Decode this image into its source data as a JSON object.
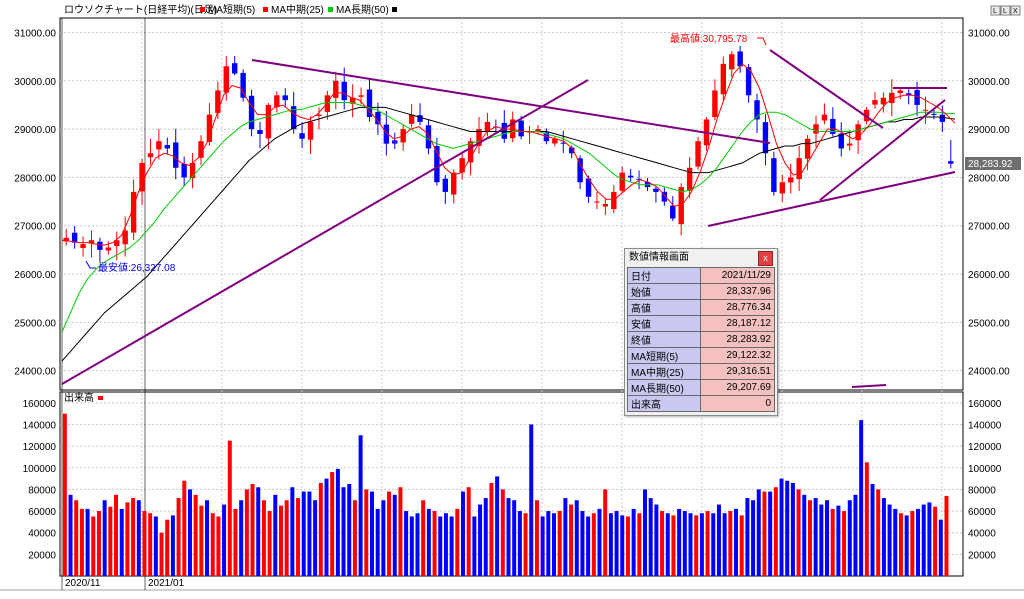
{
  "header": {
    "title": "ロウソクチャート(日経平均)(日足)",
    "ma_short_label": "MA短期(5)",
    "ma_mid_label": "MA中期(25)",
    "ma_long_label": "MA長期(50)",
    "volume_label": "出来高",
    "corner_buttons": [
      "L",
      "L",
      "X"
    ]
  },
  "colors": {
    "up": "#ff0000",
    "down": "#0000ff",
    "ma_short": "#ff0000",
    "ma_mid": "#00cc00",
    "ma_long": "#000000",
    "trendline": "#800080",
    "grid": "#c8c8c8",
    "last_price_box": "#6e6e6e"
  },
  "chart_data": [
    {
      "type": "candlestick",
      "ylim": [
        23600,
        31300
      ],
      "yticks": [
        "31000.00",
        "30000.00",
        "29000.00",
        "28000.00",
        "27000.00",
        "26000.00",
        "25000.00",
        "24000.00"
      ],
      "ytick_values": [
        31000,
        30000,
        29000,
        28000,
        27000,
        26000,
        25000,
        24000
      ],
      "date_labels": [
        "2020/11",
        "2021/01"
      ],
      "annotations": {
        "high_label": "最高値:30,795.78",
        "high_value": 30795.78,
        "low_label": "最安値:26,327.08",
        "low_value": 26327.08
      },
      "last_price_label": "28,283.92",
      "last_price": 28283.92,
      "key_closes": [
        26750,
        26650,
        26620,
        26700,
        26500,
        26550,
        26700,
        26900,
        27700,
        28300,
        28500,
        28750,
        28600,
        28200,
        28000,
        28300,
        28750,
        29300,
        29800,
        30300,
        30150,
        29650,
        29000,
        28900,
        29500,
        29700,
        29600,
        29000,
        28800,
        29150,
        29300,
        29700,
        30000,
        29600,
        29650,
        29700,
        29250,
        29100,
        28700,
        28700,
        29000,
        29300,
        29150,
        28600,
        27900,
        27700,
        28100,
        28400,
        28750,
        29000,
        29150,
        29050,
        28800,
        29200,
        28850,
        28950,
        29000,
        28750,
        28800,
        28700,
        28500,
        27900,
        27600,
        27500,
        27450,
        27700,
        28100,
        28000,
        27950,
        27800,
        27700,
        27500,
        27150,
        27800,
        28200,
        28750,
        29200,
        29800,
        30350,
        30550,
        30300,
        29700,
        29200,
        28500,
        27700,
        27900,
        28000,
        28400,
        28800,
        29100,
        29300,
        28900,
        28600,
        28700,
        29100,
        29400,
        29600,
        29650,
        29750,
        29800,
        29700,
        29500,
        29400,
        29300,
        29150,
        28280
      ],
      "ma_short_values": [
        26700,
        26680,
        26650,
        26650,
        26620,
        26600,
        26650,
        26800,
        27200,
        27700,
        28100,
        28400,
        28500,
        28450,
        28300,
        28250,
        28400,
        28700,
        29200,
        29700,
        29900,
        29850,
        29550,
        29300,
        29300,
        29450,
        29500,
        29350,
        29250,
        29200,
        29300,
        29500,
        29750,
        29750,
        29650,
        29600,
        29400,
        29200,
        28950,
        28800,
        28850,
        29000,
        29050,
        28900,
        28550,
        28200,
        28050,
        28100,
        28400,
        28700,
        28950,
        29050,
        29000,
        29000,
        28950,
        28950,
        28900,
        28850,
        28800,
        28750,
        28600,
        28250,
        27950,
        27700,
        27550,
        27550,
        27700,
        27850,
        27950,
        27900,
        27800,
        27600,
        27400,
        27450,
        27700,
        28100,
        28600,
        29200,
        29700,
        30150,
        30350,
        30200,
        29850,
        29300,
        28700,
        28300,
        28050,
        28100,
        28400,
        28700,
        29000,
        29000,
        28900,
        28800,
        28900,
        29100,
        29350,
        29550,
        29650,
        29700,
        29700,
        29650,
        29550,
        29450,
        29300,
        29120
      ],
      "ma_mid_values": [
        24800,
        25200,
        25600,
        25900,
        26100,
        26250,
        26350,
        26450,
        26550,
        26700,
        26900,
        27100,
        27350,
        27550,
        27750,
        27950,
        28150,
        28350,
        28550,
        28750,
        28900,
        29050,
        29150,
        29200,
        29250,
        29300,
        29350,
        29400,
        29400,
        29450,
        29500,
        29550,
        29550,
        29550,
        29550,
        29500,
        29450,
        29400,
        29300,
        29200,
        29100,
        29000,
        28900,
        28800,
        28700,
        28650,
        28600,
        28650,
        28700,
        28750,
        28800,
        28850,
        28900,
        28950,
        28950,
        28950,
        28950,
        28900,
        28850,
        28800,
        28700,
        28600,
        28500,
        28350,
        28200,
        28050,
        27950,
        27900,
        27850,
        27850,
        27850,
        27800,
        27750,
        27700,
        27750,
        27850,
        28000,
        28200,
        28450,
        28700,
        28950,
        29150,
        29300,
        29350,
        29350,
        29300,
        29200,
        29100,
        29000,
        28950,
        28950,
        28950,
        28950,
        28950,
        29000,
        29050,
        29100,
        29150,
        29200,
        29250,
        29300,
        29350,
        29350,
        29350,
        29330,
        29317
      ],
      "ma_long_values": [
        24200,
        24400,
        24600,
        24800,
        25000,
        25200,
        25350,
        25500,
        25650,
        25800,
        25950,
        26150,
        26350,
        26550,
        26750,
        26950,
        27150,
        27350,
        27550,
        27750,
        27950,
        28150,
        28350,
        28500,
        28650,
        28800,
        28900,
        29000,
        29100,
        29150,
        29200,
        29250,
        29300,
        29350,
        29400,
        29450,
        29450,
        29450,
        29450,
        29400,
        29350,
        29300,
        29250,
        29200,
        29150,
        29100,
        29050,
        29000,
        28950,
        28950,
        28950,
        28950,
        28950,
        28950,
        28950,
        28950,
        28950,
        28950,
        28900,
        28850,
        28800,
        28750,
        28700,
        28650,
        28600,
        28550,
        28500,
        28450,
        28400,
        28350,
        28300,
        28250,
        28200,
        28150,
        28100,
        28100,
        28100,
        28150,
        28200,
        28250,
        28300,
        28400,
        28500,
        28550,
        28600,
        28650,
        28650,
        28700,
        28700,
        28750,
        28800,
        28850,
        28900,
        28950,
        29000,
        29050,
        29100,
        29150,
        29150,
        29200,
        29200,
        29250,
        29250,
        29250,
        29230,
        29208
      ]
    },
    {
      "type": "bar",
      "ylim": [
        0,
        170000
      ],
      "yticks": [
        "160000",
        "140000",
        "120000",
        "100000",
        "80000",
        "60000",
        "40000",
        "20000"
      ],
      "ytick_values": [
        160000,
        140000,
        120000,
        100000,
        80000,
        60000,
        40000,
        20000
      ],
      "values": [
        150000,
        75000,
        70000,
        62000,
        62000,
        55000,
        60000,
        70000,
        64000,
        75000,
        62000,
        68000,
        72000,
        70000,
        60000,
        58000,
        55000,
        40000,
        52000,
        56000,
        72000,
        88000,
        80000,
        75000,
        65000,
        70000,
        58000,
        55000,
        66000,
        125000,
        62000,
        70000,
        80000,
        85000,
        82000,
        70000,
        60000,
        75000,
        65000,
        70000,
        82000,
        72000,
        78000,
        78000,
        70000,
        86000,
        90000,
        96000,
        99000,
        82000,
        85000,
        70000,
        130000,
        80000,
        78000,
        62000,
        70000,
        78000,
        75000,
        82000,
        60000,
        55000,
        58000,
        70000,
        62000,
        60000,
        55000,
        58000,
        55000,
        62000,
        78000,
        82000,
        55000,
        66000,
        72000,
        86000,
        92000,
        80000,
        72000,
        70000,
        60000,
        58000,
        140000,
        70000,
        55000,
        60000,
        58000,
        60000,
        72000,
        66000,
        70000,
        60000,
        55000,
        58000,
        62000,
        80000,
        58000,
        60000,
        56000,
        55000,
        62000,
        58000,
        80000,
        72000,
        66000,
        60000,
        58000,
        56000,
        62000,
        60000,
        58000,
        56000,
        58000,
        60000,
        58000,
        66000,
        58000,
        60000,
        62000,
        56000,
        72000,
        70000,
        80000,
        78000,
        78000,
        82000,
        90000,
        88000,
        86000,
        80000,
        75000,
        70000,
        72000,
        66000,
        70000,
        62000,
        65000,
        60000,
        70000,
        75000,
        144000,
        105000,
        85000,
        80000,
        72000,
        66000,
        62000,
        58000,
        56000,
        60000,
        62000,
        66000,
        68000,
        64000,
        52000,
        74000,
        0
      ]
    }
  ],
  "info_panel": {
    "title": "数値情報画面",
    "close_label": "x",
    "rows": [
      {
        "label": "日付",
        "value": "2021/11/29"
      },
      {
        "label": "始値",
        "value": "28,337.96"
      },
      {
        "label": "高値",
        "value": "28,776.34"
      },
      {
        "label": "安値",
        "value": "28,187.12"
      },
      {
        "label": "終値",
        "value": "28,283.92"
      },
      {
        "label": "MA短期(5)",
        "value": "29,122.32"
      },
      {
        "label": "MA中期(25)",
        "value": "29,316.51"
      },
      {
        "label": "MA長期(50)",
        "value": "29,207.69"
      },
      {
        "label": "出来高",
        "value": "0"
      }
    ]
  }
}
